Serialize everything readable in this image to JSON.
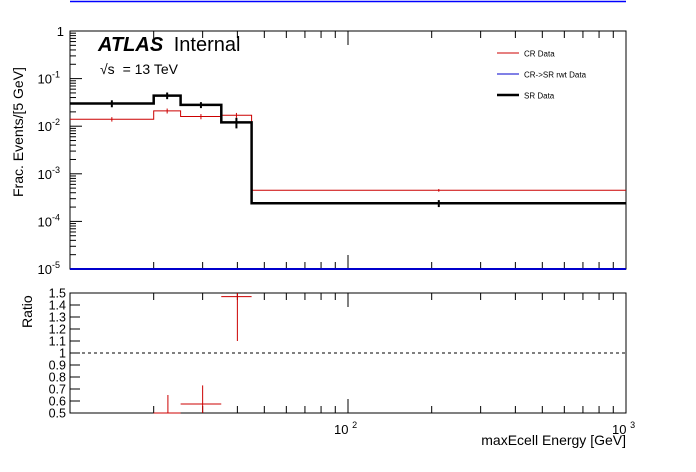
{
  "header_line_color": "#0000ff",
  "colors": {
    "cr": "#cc0000",
    "cr_rwt": "#0000cc",
    "sr": "#000000"
  },
  "chart_data": [
    {
      "type": "line",
      "panel": "main",
      "ylabel": "Frac. Events/[5 GeV]",
      "yscale": "log",
      "ylim": [
        1e-05,
        1
      ],
      "ytick_labels": {
        "one": "1",
        "ten": "10",
        "mant": [
          "-1",
          "-2",
          "-3",
          "-4",
          "-5"
        ]
      },
      "xscale": "log",
      "xlim": [
        10,
        1000
      ],
      "atlas_label": {
        "bold": "ATLAS",
        "rest": "Internal"
      },
      "energy_label": {
        "sqrt": "√s",
        "rest": "= 13 TeV"
      },
      "legend": {
        "placement": "top-right"
      },
      "series": [
        {
          "name": "CR Data",
          "color": "#cc0000",
          "bins": [
            [
              10,
              20,
              0.014
            ],
            [
              20,
              25,
              0.021
            ],
            [
              25,
              35,
              0.016
            ],
            [
              35,
              45,
              0.017
            ],
            [
              45,
              1000,
              0.00045
            ]
          ],
          "errors": [
            0.0015,
            0.0025,
            0.002,
            0.002,
            3e-05
          ]
        },
        {
          "name": "CR->SR rwt Data",
          "color": "#0000cc",
          "bins": [
            [
              10,
              1000,
              1e-05
            ]
          ],
          "errors": [
            0
          ]
        },
        {
          "name": "SR Data",
          "color": "#000000",
          "bins": [
            [
              10,
              20,
              0.03
            ],
            [
              20,
              25,
              0.044
            ],
            [
              25,
              35,
              0.028
            ],
            [
              35,
              45,
              0.012
            ],
            [
              45,
              1000,
              0.00024
            ]
          ],
          "errors": [
            0.005,
            0.007,
            0.004,
            0.003,
            4e-05
          ]
        }
      ]
    },
    {
      "type": "scatter",
      "panel": "ratio",
      "ylabel": "Ratio",
      "ylim": [
        0.5,
        1.5
      ],
      "yticks": [
        "0.5",
        "0.6",
        "0.7",
        "0.8",
        "0.9",
        "1",
        "1.1",
        "1.2",
        "1.3",
        "1.4",
        "1.5"
      ],
      "xscale": "log",
      "xlim": [
        10,
        1000
      ],
      "x_tick_labels": {
        "hundred": "10",
        "thousand": "10",
        "exp2": "2",
        "exp3": "3"
      },
      "xlabel": "maxEcell Energy [GeV]",
      "reference_line": 1.0,
      "points": [
        {
          "x": 22.5,
          "xerr": 2.5,
          "y": 0.5,
          "yerr_up": 0.15,
          "yerr_down": 0.0
        },
        {
          "x": 30,
          "xerr": 5,
          "y": 0.575,
          "yerr_up": 0.155,
          "yerr_down": 0.075
        },
        {
          "x": 40,
          "xerr": 5,
          "y": 1.47,
          "yerr_up": 0.03,
          "yerr_down": 0.37
        }
      ]
    }
  ]
}
